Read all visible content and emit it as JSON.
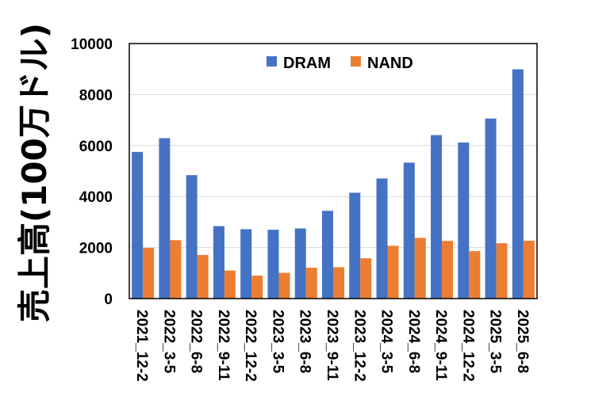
{
  "chart_data": {
    "type": "bar",
    "ylabel": "売上高(100万ドル)",
    "xlabel": "",
    "ylim": [
      0,
      10000
    ],
    "yticks": [
      0,
      2000,
      4000,
      6000,
      8000,
      10000
    ],
    "grid": true,
    "legend_placement": "top-center",
    "categories": [
      "2021_12-2",
      "2022_3-5",
      "2022_6-8",
      "2022_9-11",
      "2022_12-2",
      "2023_3-5",
      "2023_6-8",
      "2023_9-11",
      "2023_12-2",
      "2024_3-5",
      "2024_6-8",
      "2024_9-11",
      "2024_12-2",
      "2025_3-5",
      "2025_6-8"
    ],
    "series": [
      {
        "name": "DRAM",
        "color": "#4472c4",
        "values": [
          5750,
          6290,
          4840,
          2840,
          2720,
          2700,
          2750,
          3440,
          4150,
          4710,
          5330,
          6410,
          6120,
          7060,
          8990
        ]
      },
      {
        "name": "NAND",
        "color": "#ed7d31",
        "values": [
          1990,
          2290,
          1710,
          1100,
          900,
          1010,
          1210,
          1230,
          1580,
          2070,
          2380,
          2260,
          1860,
          2170,
          2270
        ]
      }
    ]
  }
}
